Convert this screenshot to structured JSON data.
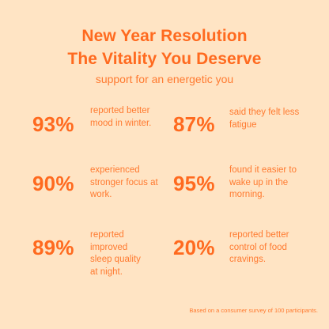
{
  "headline": {
    "line1": "New Year Resolution",
    "line2": "The Vitality You Deserve"
  },
  "subheadline": "support for an energetic you",
  "stats": [
    {
      "percent": "93%",
      "text": "reported better mood in winter."
    },
    {
      "percent": "87%",
      "text": "said they felt less fatigue"
    },
    {
      "percent": "90%",
      "text": "experienced stronger focus at work."
    },
    {
      "percent": "95%",
      "text": "found it easier to wake up in the morning."
    },
    {
      "percent": "89%",
      "text": "reported improved sleep quality at night."
    },
    {
      "percent": "20%",
      "text": "reported better control of food cravings."
    }
  ],
  "footnote": "Based on a consumer survey of 100 participants.",
  "colors": {
    "background": "#FFE4C4",
    "accent": "#FF6A1F"
  }
}
